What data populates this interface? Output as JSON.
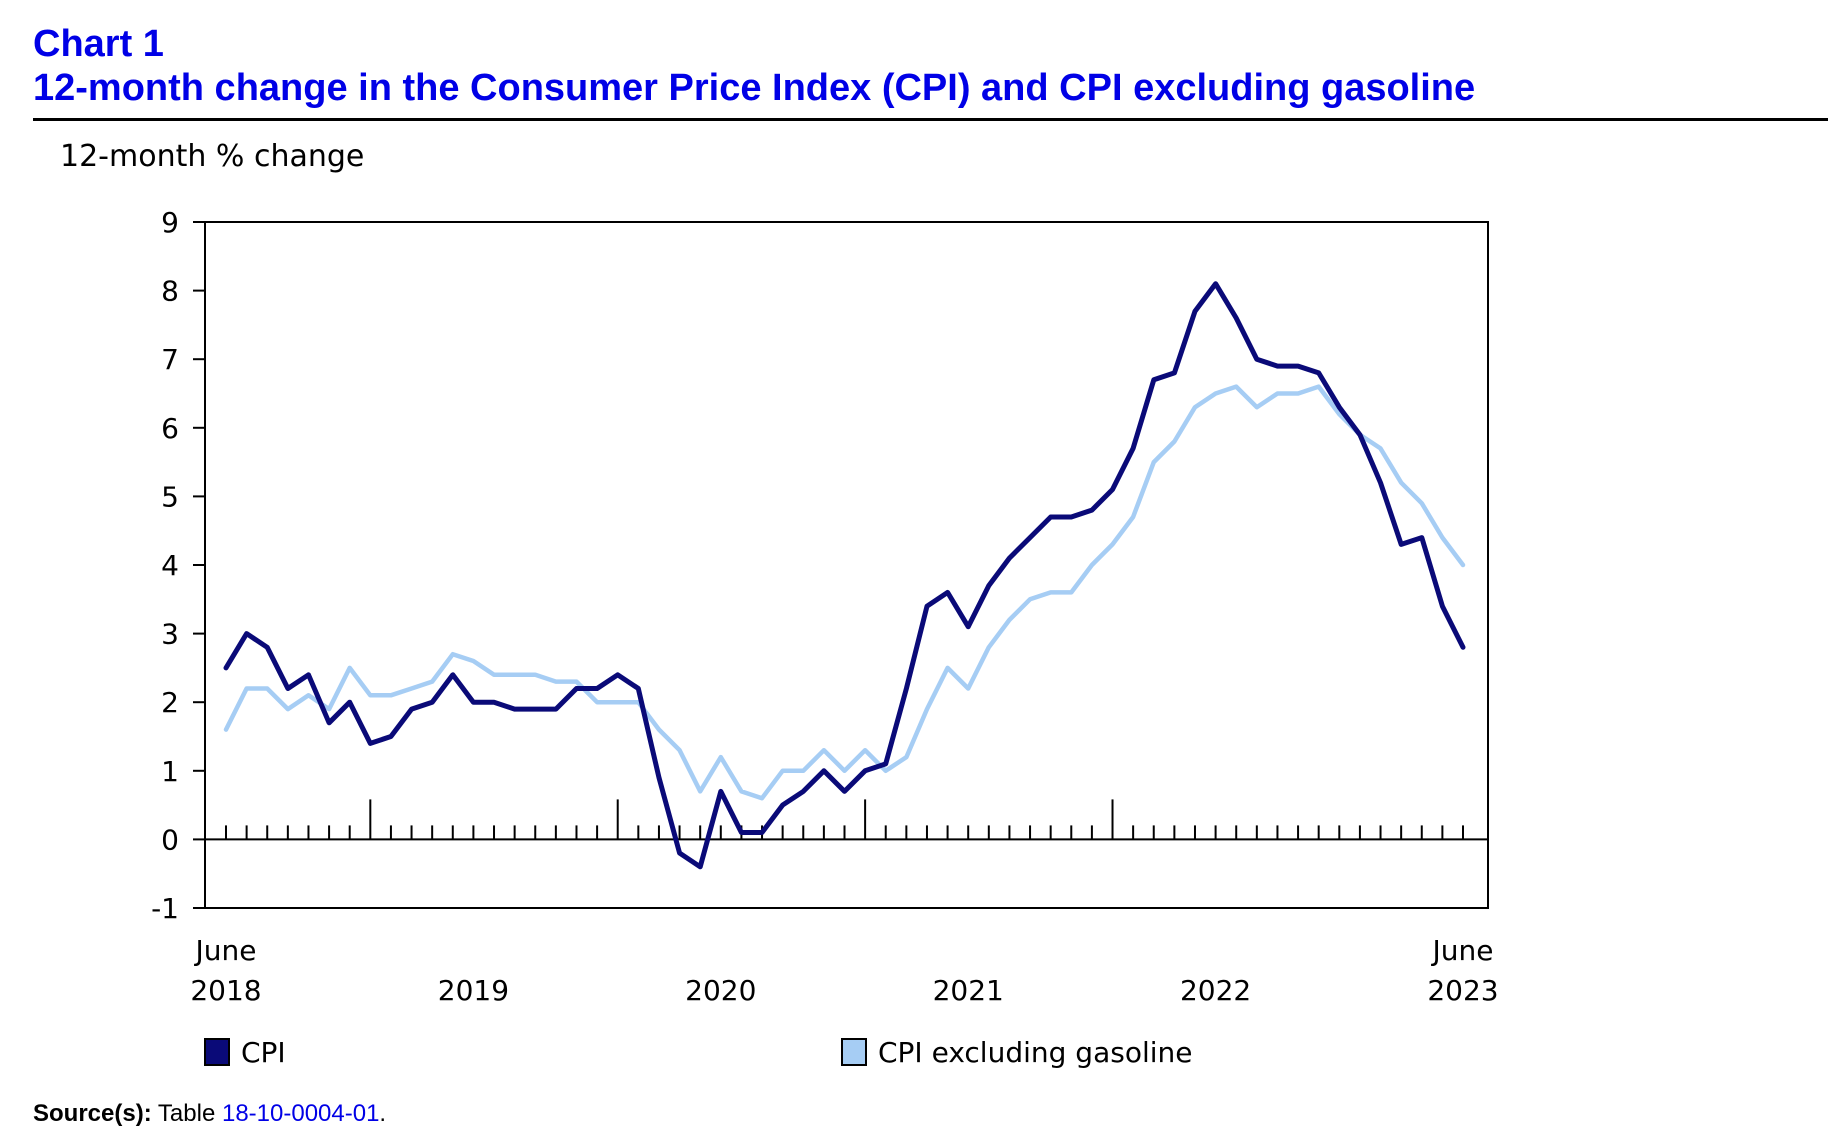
{
  "header": {
    "chart_number": "Chart 1",
    "title": "12-month change in the Consumer Price Index (CPI) and CPI excluding gasoline"
  },
  "source": {
    "label": "Source(s):",
    "text": "Table",
    "link": "18-10-0004-01",
    "suffix": "."
  },
  "colors": {
    "cpi": "#0a0a78",
    "cpi_ex_gas": "#a6cdf4"
  },
  "chart_data": {
    "type": "line",
    "title": "12-month change in the Consumer Price Index (CPI) and CPI excluding gasoline",
    "ylabel": "12-month % change",
    "ylim": [
      -1,
      9
    ],
    "yticks": [
      -1,
      0,
      1,
      2,
      3,
      4,
      5,
      6,
      7,
      8,
      9
    ],
    "x_start": "2018-06",
    "x_end": "2023-06",
    "x_tick_labels": [
      {
        "month_index": 0,
        "line1": "June",
        "line2": "2018"
      },
      {
        "month_index": 12,
        "line1": "",
        "line2": "2019"
      },
      {
        "month_index": 24,
        "line1": "",
        "line2": "2020"
      },
      {
        "month_index": 36,
        "line1": "",
        "line2": "2021"
      },
      {
        "month_index": 48,
        "line1": "",
        "line2": "2022"
      },
      {
        "month_index": 60,
        "line1": "June",
        "line2": "2023"
      }
    ],
    "legend_position": "bottom",
    "grid": false,
    "series": [
      {
        "name": "CPI",
        "values": [
          2.5,
          3.0,
          2.8,
          2.2,
          2.4,
          1.7,
          2.0,
          1.4,
          1.5,
          1.9,
          2.0,
          2.4,
          2.0,
          2.0,
          1.9,
          1.9,
          1.9,
          2.2,
          2.2,
          2.4,
          2.2,
          0.9,
          -0.2,
          -0.4,
          0.7,
          0.1,
          0.1,
          0.5,
          0.7,
          1.0,
          0.7,
          1.0,
          1.1,
          2.2,
          3.4,
          3.6,
          3.1,
          3.7,
          4.1,
          4.4,
          4.7,
          4.7,
          4.8,
          5.1,
          5.7,
          6.7,
          6.8,
          7.7,
          8.1,
          7.6,
          7.0,
          6.9,
          6.9,
          6.8,
          6.3,
          5.9,
          5.2,
          4.3,
          4.4,
          3.4,
          2.8
        ]
      },
      {
        "name": "CPI excluding gasoline",
        "values": [
          1.6,
          2.2,
          2.2,
          1.9,
          2.1,
          1.9,
          2.5,
          2.1,
          2.1,
          2.2,
          2.3,
          2.7,
          2.6,
          2.4,
          2.4,
          2.4,
          2.3,
          2.3,
          2.0,
          2.0,
          2.0,
          1.6,
          1.3,
          0.7,
          1.2,
          0.7,
          0.6,
          1.0,
          1.0,
          1.3,
          1.0,
          1.3,
          1.0,
          1.2,
          1.9,
          2.5,
          2.2,
          2.8,
          3.2,
          3.5,
          3.6,
          3.6,
          4.0,
          4.3,
          4.7,
          5.5,
          5.8,
          6.3,
          6.5,
          6.6,
          6.3,
          6.5,
          6.5,
          6.6,
          6.2,
          5.9,
          5.7,
          5.2,
          4.9,
          4.4,
          4.0
        ]
      }
    ]
  }
}
